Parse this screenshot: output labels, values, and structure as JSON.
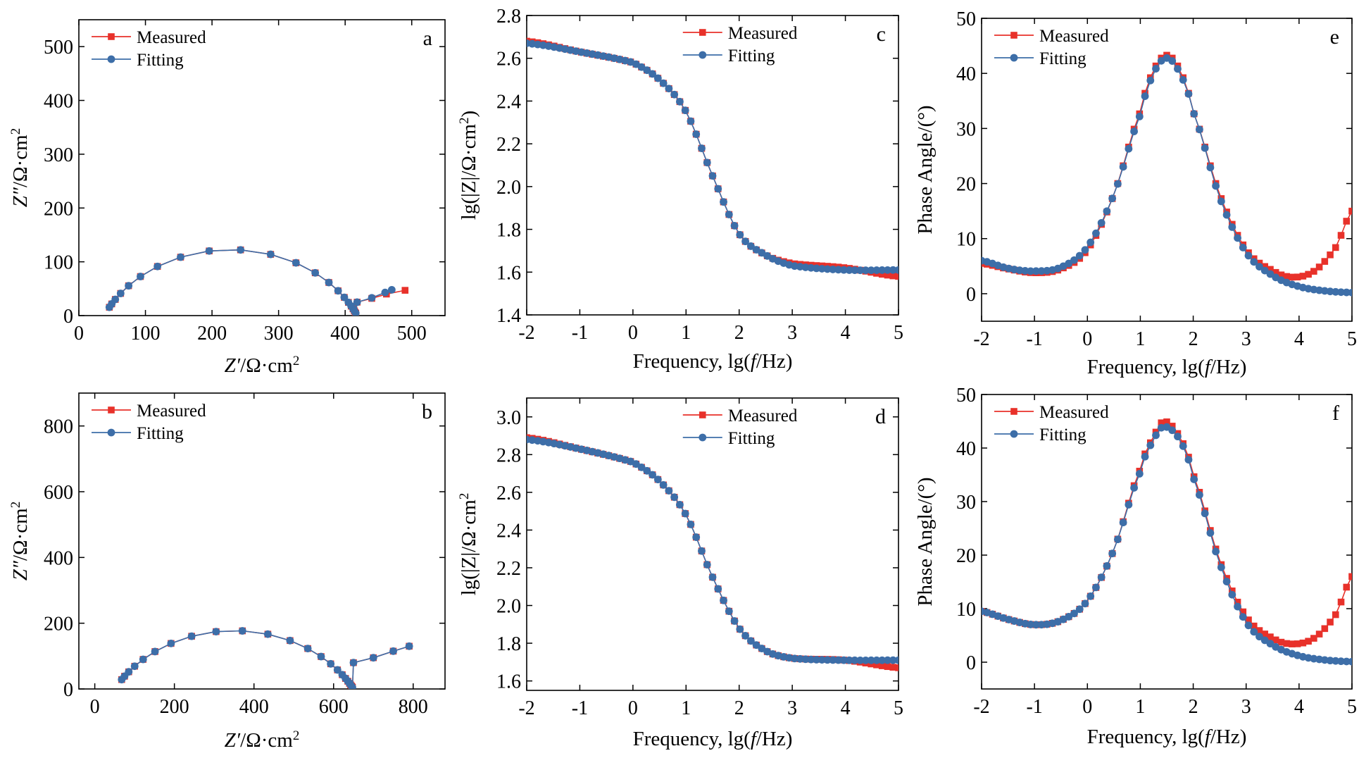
{
  "colors": {
    "measured": "#e8312a",
    "fitting": "#3d6ea8",
    "axis": "#000000"
  },
  "chart_data": [
    {
      "id": "a",
      "type": "scatter",
      "panel_label": "a",
      "xlabel": "Z′/Ω·cm²",
      "ylabel": "Z″/Ω·cm²",
      "xlim": [
        0,
        550
      ],
      "ylim": [
        0,
        550
      ],
      "xticks": [
        0,
        100,
        200,
        300,
        400,
        500
      ],
      "yticks": [
        0,
        100,
        200,
        300,
        400,
        500
      ],
      "legend": {
        "position": "top-left",
        "entries": [
          "Measured",
          "Fitting"
        ]
      },
      "series": [
        {
          "name": "Measured",
          "kind": "nyquist",
          "R0": 38,
          "R1": 380,
          "depression": 0.73,
          "tail": [
            [
              418,
              25
            ],
            [
              440,
              32
            ],
            [
              462,
              40
            ],
            [
              490,
              47
            ]
          ]
        },
        {
          "name": "Fitting",
          "kind": "nyquist",
          "R0": 38,
          "R1": 380,
          "depression": 0.73,
          "tail": [
            [
              418,
              25
            ],
            [
              440,
              33
            ],
            [
              460,
              43
            ],
            [
              470,
              48
            ]
          ]
        }
      ]
    },
    {
      "id": "b",
      "type": "scatter",
      "panel_label": "b",
      "xlabel": "Z′/Ω·cm²",
      "ylabel": "Z″/Ω·cm²",
      "xlim": [
        -40,
        880
      ],
      "ylim": [
        0,
        900
      ],
      "xticks": [
        0,
        200,
        400,
        600,
        800
      ],
      "yticks": [
        0,
        200,
        400,
        600,
        800
      ],
      "legend": {
        "position": "top-left",
        "entries": [
          "Measured",
          "Fitting"
        ]
      },
      "series": [
        {
          "name": "Measured",
          "kind": "nyquist",
          "R0": 50,
          "R1": 600,
          "depression": 0.68,
          "tail": [
            [
              650,
              80
            ],
            [
              700,
              95
            ],
            [
              750,
              115
            ],
            [
              790,
              130
            ]
          ]
        },
        {
          "name": "Fitting",
          "kind": "nyquist",
          "R0": 50,
          "R1": 600,
          "depression": 0.68,
          "tail": [
            [
              650,
              80
            ],
            [
              700,
              95
            ],
            [
              750,
              115
            ],
            [
              790,
              130
            ]
          ]
        }
      ]
    },
    {
      "id": "c",
      "type": "scatter",
      "panel_label": "c",
      "xlabel": "Frequency, lg(f/Hz)",
      "ylabel": "lg(|Z|/Ω·cm²)",
      "xlim": [
        -2,
        5
      ],
      "ylim": [
        1.4,
        2.8
      ],
      "xticks": [
        -2,
        -1,
        0,
        1,
        2,
        3,
        4,
        5
      ],
      "yticks": [
        1.4,
        1.6,
        1.8,
        2.0,
        2.2,
        2.4,
        2.6,
        2.8
      ],
      "legend": {
        "position": "top-center",
        "entries": [
          "Measured",
          "Fitting"
        ]
      },
      "series": [
        {
          "name": "Measured",
          "kind": "bode",
          "points": [
            [
              -2,
              2.68
            ],
            [
              -1,
              2.63
            ],
            [
              0,
              2.58
            ],
            [
              0.5,
              2.5
            ],
            [
              1,
              2.35
            ],
            [
              1.5,
              2.05
            ],
            [
              2,
              1.78
            ],
            [
              2.5,
              1.68
            ],
            [
              3,
              1.64
            ],
            [
              4,
              1.62
            ],
            [
              5,
              1.58
            ]
          ]
        },
        {
          "name": "Fitting",
          "kind": "bode",
          "points": [
            [
              -2,
              2.67
            ],
            [
              -1,
              2.63
            ],
            [
              0,
              2.58
            ],
            [
              0.5,
              2.5
            ],
            [
              1,
              2.35
            ],
            [
              1.5,
              2.05
            ],
            [
              2,
              1.78
            ],
            [
              2.5,
              1.68
            ],
            [
              3,
              1.63
            ],
            [
              4,
              1.61
            ],
            [
              5,
              1.61
            ]
          ]
        }
      ]
    },
    {
      "id": "d",
      "type": "scatter",
      "panel_label": "d",
      "xlabel": "Frequency, lg(f/Hz)",
      "ylabel": "lg(|Z|/Ω·cm²",
      "xlim": [
        -2,
        5
      ],
      "ylim": [
        1.55,
        3.1
      ],
      "xticks": [
        -2,
        -1,
        0,
        1,
        2,
        3,
        4,
        5
      ],
      "yticks": [
        1.6,
        1.8,
        2.0,
        2.2,
        2.4,
        2.6,
        2.8,
        3.0
      ],
      "legend": {
        "position": "top-center",
        "entries": [
          "Measured",
          "Fitting"
        ]
      },
      "series": [
        {
          "name": "Measured",
          "kind": "bode",
          "points": [
            [
              -2,
              2.89
            ],
            [
              -1,
              2.83
            ],
            [
              0,
              2.76
            ],
            [
              0.5,
              2.66
            ],
            [
              1,
              2.48
            ],
            [
              1.5,
              2.15
            ],
            [
              2,
              1.88
            ],
            [
              2.5,
              1.76
            ],
            [
              3,
              1.72
            ],
            [
              4,
              1.71
            ],
            [
              5,
              1.67
            ]
          ]
        },
        {
          "name": "Fitting",
          "kind": "bode",
          "points": [
            [
              -2,
              2.88
            ],
            [
              -1,
              2.83
            ],
            [
              0,
              2.76
            ],
            [
              0.5,
              2.66
            ],
            [
              1,
              2.48
            ],
            [
              1.5,
              2.15
            ],
            [
              2,
              1.88
            ],
            [
              2.5,
              1.76
            ],
            [
              3,
              1.72
            ],
            [
              4,
              1.71
            ],
            [
              5,
              1.71
            ]
          ]
        }
      ]
    },
    {
      "id": "e",
      "type": "scatter",
      "panel_label": "e",
      "xlabel": "Frequency, lg(f/Hz)",
      "ylabel": "Phase Angle/(°)",
      "xlim": [
        -2,
        5
      ],
      "ylim": [
        -5,
        50
      ],
      "xticks": [
        -2,
        -1,
        0,
        1,
        2,
        3,
        4,
        5
      ],
      "yticks": [
        0,
        10,
        20,
        30,
        40,
        50
      ],
      "legend": {
        "position": "top-left",
        "entries": [
          "Measured",
          "Fitting"
        ]
      },
      "series": [
        {
          "name": "Measured",
          "kind": "phase",
          "points": [
            [
              -2,
              5.5
            ],
            [
              -1.5,
              4.5
            ],
            [
              -1,
              3.8
            ],
            [
              -0.5,
              4.5
            ],
            [
              0,
              8
            ],
            [
              0.5,
              18
            ],
            [
              1,
              33
            ],
            [
              1.25,
              40.5
            ],
            [
              1.5,
              43.3
            ],
            [
              1.75,
              40.5
            ],
            [
              2,
              33
            ],
            [
              2.5,
              18
            ],
            [
              3,
              8
            ],
            [
              3.5,
              4.2
            ],
            [
              3.9,
              3.0
            ],
            [
              4.3,
              4.2
            ],
            [
              4.7,
              8.5
            ],
            [
              5,
              15
            ]
          ]
        },
        {
          "name": "Fitting",
          "kind": "phase",
          "points": [
            [
              -2,
              6
            ],
            [
              -1.5,
              4.6
            ],
            [
              -1,
              4.1
            ],
            [
              -0.5,
              4.8
            ],
            [
              0,
              8.5
            ],
            [
              0.5,
              18
            ],
            [
              1,
              32.5
            ],
            [
              1.25,
              40
            ],
            [
              1.5,
              42.8
            ],
            [
              1.75,
              40
            ],
            [
              2,
              33
            ],
            [
              2.5,
              17.5
            ],
            [
              3,
              7.5
            ],
            [
              3.5,
              3.3
            ],
            [
              4,
              1.3
            ],
            [
              4.5,
              0.5
            ],
            [
              5,
              0.2
            ]
          ]
        }
      ]
    },
    {
      "id": "f",
      "type": "scatter",
      "panel_label": "f",
      "xlabel": "Frequency, lg(f/Hz)",
      "ylabel": "Phase Angle/(°)",
      "xlim": [
        -2,
        5
      ],
      "ylim": [
        -5,
        50
      ],
      "xticks": [
        -2,
        -1,
        0,
        1,
        2,
        3,
        4,
        5
      ],
      "yticks": [
        0,
        10,
        20,
        30,
        40,
        50
      ],
      "legend": {
        "position": "top-left",
        "entries": [
          "Measured",
          "Fitting"
        ]
      },
      "series": [
        {
          "name": "Measured",
          "kind": "phase",
          "points": [
            [
              -2,
              9.5
            ],
            [
              -1.5,
              8
            ],
            [
              -1,
              7
            ],
            [
              -0.5,
              7.8
            ],
            [
              0,
              11.5
            ],
            [
              0.5,
              21
            ],
            [
              1,
              36
            ],
            [
              1.25,
              42
            ],
            [
              1.45,
              45
            ],
            [
              1.75,
              42
            ],
            [
              2,
              35
            ],
            [
              2.5,
              19
            ],
            [
              3,
              8.5
            ],
            [
              3.5,
              4.5
            ],
            [
              3.9,
              3.4
            ],
            [
              4.3,
              4.6
            ],
            [
              4.7,
              9
            ],
            [
              5,
              16
            ]
          ]
        },
        {
          "name": "Fitting",
          "kind": "phase",
          "points": [
            [
              -2,
              9.5
            ],
            [
              -1.5,
              8
            ],
            [
              -1,
              7
            ],
            [
              -0.5,
              7.8
            ],
            [
              0,
              11.5
            ],
            [
              0.5,
              21
            ],
            [
              1,
              35.5
            ],
            [
              1.25,
              41.5
            ],
            [
              1.45,
              44
            ],
            [
              1.75,
              41.5
            ],
            [
              2,
              34.5
            ],
            [
              2.5,
              18.5
            ],
            [
              3,
              7.5
            ],
            [
              3.5,
              3.2
            ],
            [
              4,
              1.2
            ],
            [
              4.5,
              0.4
            ],
            [
              5,
              0.1
            ]
          ]
        }
      ]
    }
  ]
}
